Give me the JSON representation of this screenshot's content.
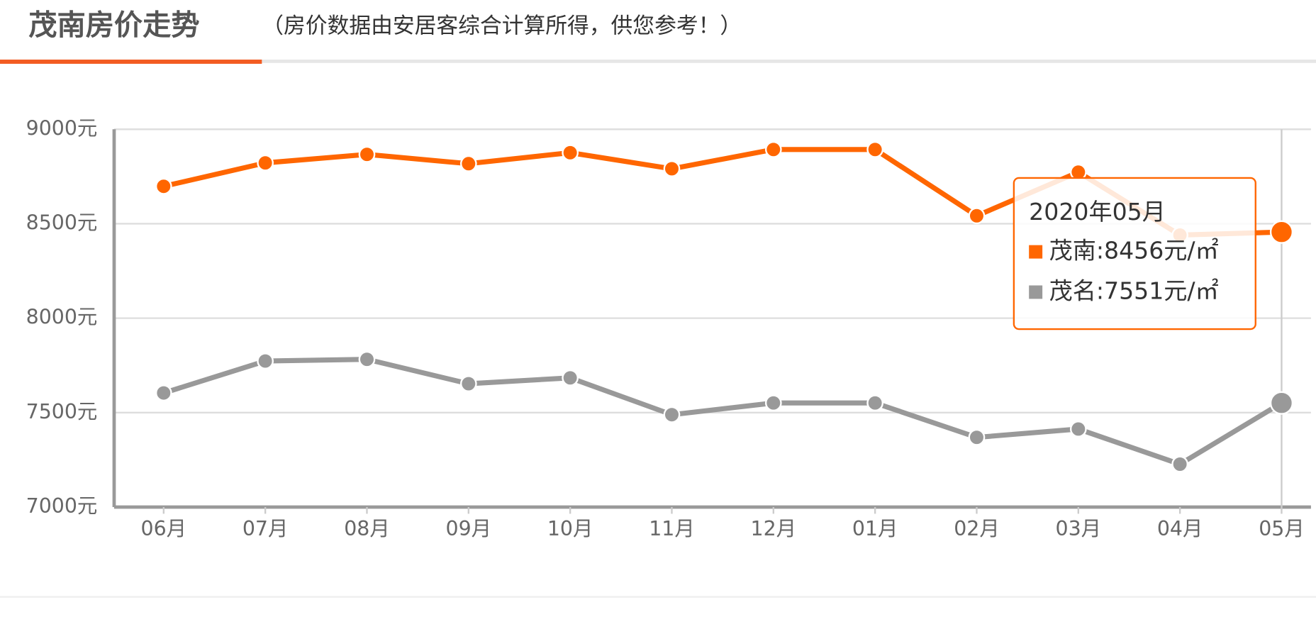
{
  "header": {
    "title": "茂南房价走势",
    "subtitle": "（房价数据由安居客综合计算所得，供您参考！）"
  },
  "chart_data": {
    "type": "line",
    "categories": [
      "06月",
      "07月",
      "08月",
      "09月",
      "10月",
      "11月",
      "12月",
      "01月",
      "02月",
      "03月",
      "04月",
      "05月"
    ],
    "series": [
      {
        "name": "茂南",
        "color": "#ff6600",
        "values": [
          8698,
          8822,
          8867,
          8818,
          8876,
          8791,
          8893,
          8893,
          8542,
          8773,
          8440,
          8456
        ]
      },
      {
        "name": "茂名",
        "color": "#999999",
        "values": [
          7604,
          7773,
          7782,
          7653,
          7684,
          7489,
          7551,
          7551,
          7369,
          7413,
          7227,
          7551
        ]
      }
    ],
    "ylim": [
      7000,
      9000
    ],
    "yticks": [
      {
        "value": 7000,
        "label": "7000元"
      },
      {
        "value": 7500,
        "label": "7500元"
      },
      {
        "value": 8000,
        "label": "8000元"
      },
      {
        "value": 8500,
        "label": "8500元"
      },
      {
        "value": 9000,
        "label": "9000元"
      }
    ],
    "grid": true,
    "tooltip": {
      "title": "2020年05月",
      "items": [
        "茂南:8456元/㎡",
        "茂名:7551元/㎡"
      ]
    }
  }
}
